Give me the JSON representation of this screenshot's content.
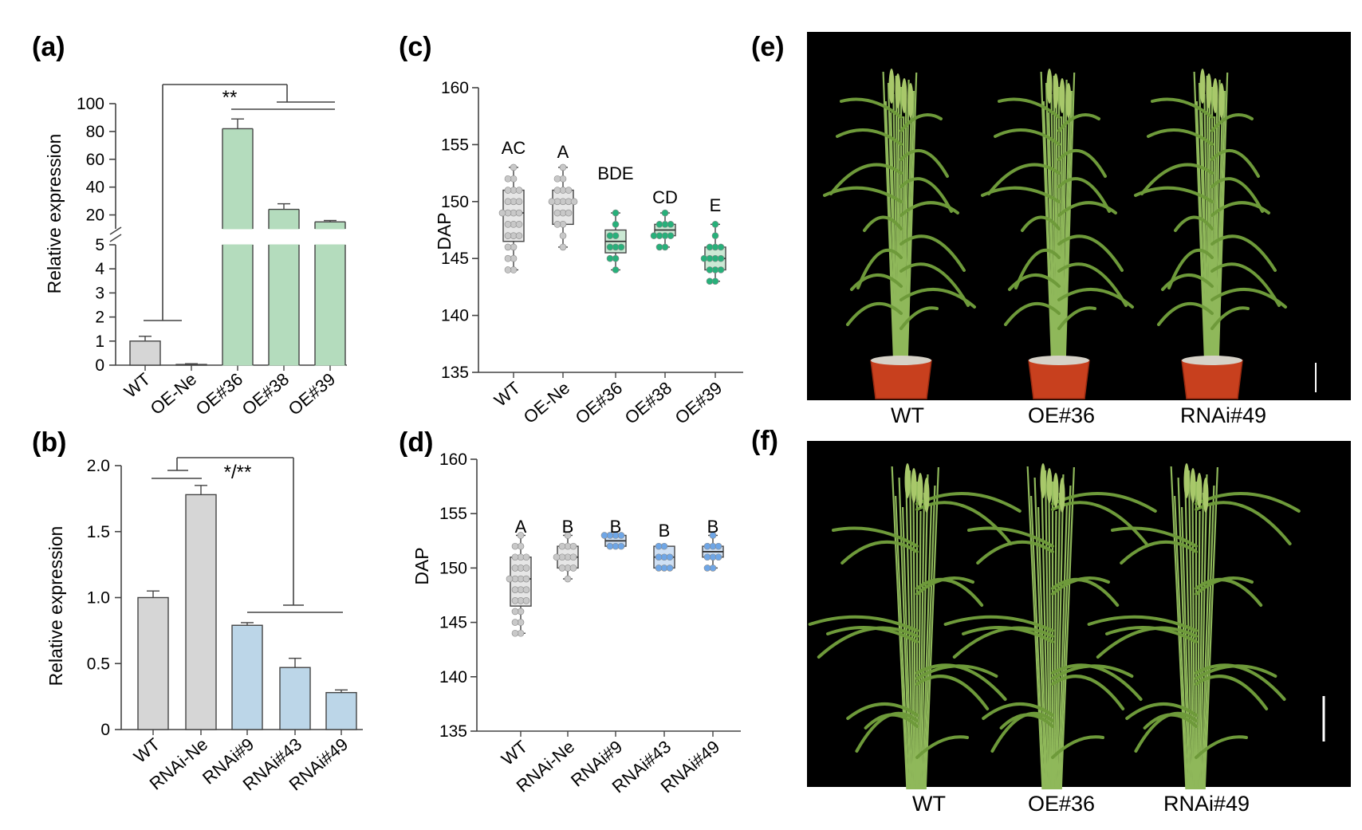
{
  "panels": {
    "a": {
      "label": "(a)",
      "chart_data": {
        "type": "bar",
        "ylabel": "Relative expression",
        "y_break": [
          5,
          10
        ],
        "lower_ticks": [
          "0",
          "1",
          "2",
          "3",
          "4",
          "5"
        ],
        "upper_ticks": [
          "20",
          "40",
          "60",
          "80",
          "100"
        ],
        "categories": [
          "WT",
          "OE-Ne",
          "OE#36",
          "OE#38",
          "OE#39"
        ],
        "values": [
          1.0,
          0.03,
          82,
          24,
          15
        ],
        "errors": [
          0.2,
          0.03,
          7,
          4,
          1
        ],
        "colors": [
          "#d6d6d6",
          "#d6d6d6",
          "#b4dcbd",
          "#b4dcbd",
          "#b4dcbd"
        ],
        "significance": "**"
      }
    },
    "b": {
      "label": "(b)",
      "chart_data": {
        "type": "bar",
        "ylabel": "Relative expression",
        "ylim": [
          0,
          2.0
        ],
        "ticks": [
          "0",
          "0.5",
          "1.0",
          "1.5",
          "2.0"
        ],
        "categories": [
          "WT",
          "RNAi-Ne",
          "RNAi#9",
          "RNAi#43",
          "RNAi#49"
        ],
        "values": [
          1.0,
          1.78,
          0.79,
          0.47,
          0.28
        ],
        "errors": [
          0.05,
          0.07,
          0.02,
          0.07,
          0.02
        ],
        "colors": [
          "#d6d6d6",
          "#d6d6d6",
          "#bcd6e8",
          "#bcd6e8",
          "#bcd6e8"
        ],
        "significance": "*/**"
      }
    },
    "c": {
      "label": "(c)",
      "chart_data": {
        "type": "box",
        "ylabel": "DAP",
        "ylim": [
          135,
          160
        ],
        "ticks": [
          "135",
          "140",
          "145",
          "150",
          "155",
          "160"
        ],
        "categories": [
          "WT",
          "OE-Ne",
          "OE#36",
          "OE#38",
          "OE#39"
        ],
        "stats": [
          {
            "min": 144,
            "q1": 146.5,
            "median": 149,
            "q3": 151,
            "max": 153
          },
          {
            "min": 146,
            "q1": 148,
            "median": 150,
            "q3": 151,
            "max": 153
          },
          {
            "min": 144,
            "q1": 145.5,
            "median": 146.5,
            "q3": 147.5,
            "max": 149
          },
          {
            "min": 146,
            "q1": 147,
            "median": 147.5,
            "q3": 148,
            "max": 149
          },
          {
            "min": 143,
            "q1": 144,
            "median": 145,
            "q3": 146,
            "max": 148
          }
        ],
        "points": [
          [
            144,
            144,
            145,
            145,
            146,
            146,
            147,
            147,
            147,
            148,
            148,
            148,
            149,
            149,
            149,
            149,
            150,
            150,
            150,
            151,
            151,
            151,
            152,
            152,
            153
          ],
          [
            146,
            147,
            148,
            148,
            149,
            149,
            149,
            150,
            150,
            150,
            150,
            150,
            151,
            151,
            151,
            152,
            152,
            153
          ],
          [
            144,
            145,
            145,
            146,
            146,
            146,
            147,
            147,
            148,
            149
          ],
          [
            146,
            146,
            147,
            147,
            147,
            147,
            148,
            148,
            148,
            149
          ],
          [
            143,
            143,
            144,
            144,
            144,
            145,
            145,
            145,
            145,
            146,
            146,
            146,
            147,
            148
          ]
        ],
        "letters": [
          "AC",
          "A",
          "BDE",
          "CD",
          "E"
        ],
        "box_fill": [
          "#e6e6e6",
          "#e6e6e6",
          "#cbe9d4",
          "#cbe9d4",
          "#cbe9d4"
        ],
        "point_color": [
          "#c8c8c8",
          "#c8c8c8",
          "#27b07a",
          "#27b07a",
          "#27b07a"
        ]
      }
    },
    "d": {
      "label": "(d)",
      "chart_data": {
        "type": "box",
        "ylabel": "DAP",
        "ylim": [
          135,
          160
        ],
        "ticks": [
          "135",
          "140",
          "145",
          "150",
          "155",
          "160"
        ],
        "categories": [
          "WT",
          "RNAi-Ne",
          "RNAi#9",
          "RNAi#43",
          "RNAi#49"
        ],
        "stats": [
          {
            "min": 144,
            "q1": 146.5,
            "median": 149,
            "q3": 151,
            "max": 153
          },
          {
            "min": 149,
            "q1": 150,
            "median": 151,
            "q3": 152,
            "max": 153
          },
          {
            "min": 152,
            "q1": 152,
            "median": 152.5,
            "q3": 153,
            "max": 153
          },
          {
            "min": 150,
            "q1": 150,
            "median": 151,
            "q3": 152,
            "max": 152
          },
          {
            "min": 150,
            "q1": 151,
            "median": 151.5,
            "q3": 152,
            "max": 153
          }
        ],
        "points": [
          [
            144,
            144,
            145,
            145,
            146,
            146,
            147,
            147,
            147,
            148,
            148,
            148,
            149,
            149,
            149,
            149,
            150,
            150,
            150,
            151,
            151,
            151,
            152,
            152,
            153
          ],
          [
            149,
            150,
            150,
            150,
            151,
            151,
            151,
            151,
            152,
            152,
            152,
            153
          ],
          [
            152,
            152,
            152,
            153,
            153,
            153,
            153
          ],
          [
            150,
            150,
            150,
            151,
            151,
            151,
            152,
            152
          ],
          [
            150,
            150,
            151,
            151,
            151,
            152,
            152,
            152,
            153
          ]
        ],
        "letters": [
          "A",
          "B",
          "B",
          "B",
          "B"
        ],
        "box_fill": [
          "#e6e6e6",
          "#e6e6e6",
          "#cfe0f4",
          "#cfe0f4",
          "#cfe0f4"
        ],
        "point_color": [
          "#c8c8c8",
          "#c8c8c8",
          "#6fa6e6",
          "#6fa6e6",
          "#6fa6e6"
        ]
      }
    },
    "e": {
      "label": "(e)",
      "photo_labels": [
        "WT",
        "OE#36",
        "RNAi#49"
      ]
    },
    "f": {
      "label": "(f)",
      "photo_labels": [
        "WT",
        "OE#36",
        "RNAi#49"
      ]
    }
  },
  "colors": {
    "grey_bar": "#d6d6d6",
    "green_bar": "#b4dcbd",
    "blue_bar": "#bcd6e8",
    "photo_bg": "#000000",
    "plant_green": "#6e9a3a",
    "pot": "#c8401e"
  }
}
